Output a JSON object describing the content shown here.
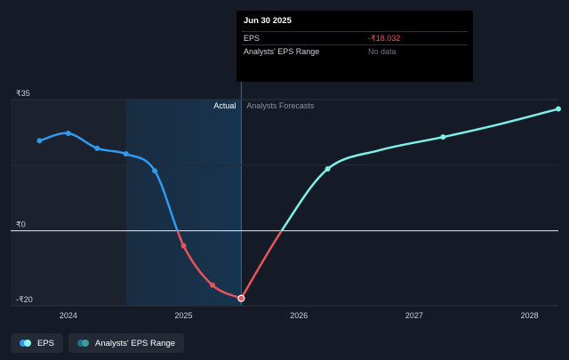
{
  "tooltip": {
    "date": "Jun 30 2025",
    "rows": [
      {
        "label": "EPS",
        "value": "-₹18.032"
      },
      {
        "label": "Analysts' EPS Range",
        "value": "No data"
      }
    ]
  },
  "labels": {
    "actual": "Actual",
    "forecast": "Analysts Forecasts"
  },
  "legend": [
    {
      "label": "EPS",
      "color_a": "#2f9bf0",
      "color_b": "#8ef5ee"
    },
    {
      "label": "Analysts' EPS Range",
      "color_a": "#1f6f8e",
      "color_b": "#3a9e9a"
    }
  ],
  "colors": {
    "actual_positive": "#2f9bf0",
    "actual_negative": "#e5545b",
    "forecast": "#7ef0ea",
    "background": "#151b26"
  },
  "chart_data": {
    "type": "line",
    "y_tick_labels": [
      "₹35",
      "₹0",
      "-₹20"
    ],
    "y_ticks": [
      35,
      0,
      -20
    ],
    "ylim": [
      -20,
      35
    ],
    "x_tick_labels": [
      "2024",
      "2025",
      "2026",
      "2027",
      "2028"
    ],
    "x_ticks": [
      2024,
      2025,
      2026,
      2027,
      2028
    ],
    "xlim": [
      2023.5,
      2028.25
    ],
    "actual_end": 2025.5,
    "highlight_start": 2024.5,
    "series": [
      {
        "name": "EPS",
        "segment": "actual",
        "points": [
          [
            2023.75,
            24
          ],
          [
            2024.0,
            26
          ],
          [
            2024.25,
            22
          ],
          [
            2024.5,
            20.5
          ],
          [
            2024.75,
            16
          ],
          [
            2025.0,
            -4
          ],
          [
            2025.25,
            -14.5
          ],
          [
            2025.5,
            -18.032
          ]
        ]
      },
      {
        "name": "EPS",
        "segment": "forecast",
        "points": [
          [
            2025.5,
            -18.032
          ],
          [
            2025.85,
            0
          ],
          [
            2026.25,
            16.5
          ],
          [
            2026.7,
            21.5
          ],
          [
            2027.25,
            25
          ],
          [
            2027.75,
            28.5
          ],
          [
            2028.25,
            32.5
          ]
        ]
      }
    ],
    "markers": [
      [
        2023.75,
        24
      ],
      [
        2024.0,
        26
      ],
      [
        2024.25,
        22
      ],
      [
        2024.5,
        20.5
      ],
      [
        2024.75,
        16
      ],
      [
        2025.0,
        -4
      ],
      [
        2025.25,
        -14.5
      ],
      [
        2025.5,
        -18.032
      ],
      [
        2026.25,
        16.5
      ],
      [
        2027.25,
        25
      ],
      [
        2028.25,
        32.5
      ]
    ]
  }
}
